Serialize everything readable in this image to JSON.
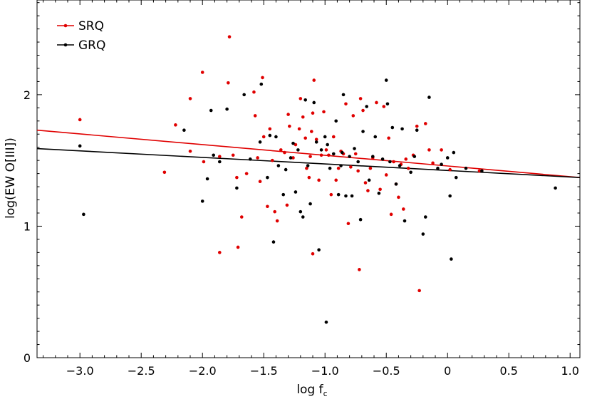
{
  "chart_data": {
    "type": "scatter",
    "title": "",
    "xlabel": "log f",
    "xlabel_sub": "c",
    "ylabel": "log(EW O[III])",
    "xlim": [
      -3.35,
      1.08
    ],
    "ylim": [
      0,
      2.72
    ],
    "x_ticks": [
      -3.0,
      -2.5,
      -2.0,
      -1.5,
      -1.0,
      -0.5,
      0,
      0.5,
      1.0
    ],
    "x_tick_labels": [
      "−3.0",
      "−2.5",
      "−2.0",
      "−1.5",
      "−1.0",
      "−0.5",
      "0",
      "0.5",
      "1.0"
    ],
    "y_ticks": [
      0,
      1,
      2
    ],
    "y_tick_labels": [
      "0",
      "1",
      "2"
    ],
    "grid": false,
    "legend_position": "top-left",
    "series": [
      {
        "name": "SRQ",
        "color": "#e00000",
        "points": [
          [
            -3.0,
            1.81
          ],
          [
            -2.31,
            1.41
          ],
          [
            -2.22,
            1.77
          ],
          [
            -2.1,
            1.97
          ],
          [
            -2.1,
            1.57
          ],
          [
            -2.0,
            2.17
          ],
          [
            -1.99,
            1.49
          ],
          [
            -1.86,
            1.53
          ],
          [
            -1.86,
            0.8
          ],
          [
            -1.79,
            2.09
          ],
          [
            -1.78,
            2.44
          ],
          [
            -1.75,
            1.54
          ],
          [
            -1.72,
            1.37
          ],
          [
            -1.71,
            0.84
          ],
          [
            -1.68,
            1.07
          ],
          [
            -1.64,
            1.4
          ],
          [
            -1.58,
            2.02
          ],
          [
            -1.57,
            1.84
          ],
          [
            -1.55,
            1.52
          ],
          [
            -1.53,
            1.34
          ],
          [
            -1.51,
            2.13
          ],
          [
            -1.5,
            1.68
          ],
          [
            -1.47,
            1.15
          ],
          [
            -1.45,
            1.74
          ],
          [
            -1.43,
            1.5
          ],
          [
            -1.41,
            1.11
          ],
          [
            -1.39,
            1.04
          ],
          [
            -1.36,
            1.58
          ],
          [
            -1.33,
            1.56
          ],
          [
            -1.31,
            1.16
          ],
          [
            -1.3,
            1.85
          ],
          [
            -1.29,
            1.76
          ],
          [
            -1.26,
            1.52
          ],
          [
            -1.24,
            1.62
          ],
          [
            -1.21,
            1.74
          ],
          [
            -1.2,
            1.97
          ],
          [
            -1.18,
            1.83
          ],
          [
            -1.16,
            1.67
          ],
          [
            -1.15,
            1.44
          ],
          [
            -1.13,
            1.37
          ],
          [
            -1.12,
            1.53
          ],
          [
            -1.11,
            1.72
          ],
          [
            -1.1,
            1.86
          ],
          [
            -1.1,
            0.79
          ],
          [
            -1.09,
            2.11
          ],
          [
            -1.07,
            1.66
          ],
          [
            -1.05,
            1.35
          ],
          [
            -1.03,
            1.54
          ],
          [
            -1.01,
            1.87
          ],
          [
            -0.99,
            1.58
          ],
          [
            -0.97,
            1.54
          ],
          [
            -0.95,
            1.24
          ],
          [
            -0.93,
            1.68
          ],
          [
            -0.91,
            1.35
          ],
          [
            -0.89,
            1.44
          ],
          [
            -0.87,
            1.57
          ],
          [
            -0.85,
            1.55
          ],
          [
            -0.83,
            1.93
          ],
          [
            -0.81,
            1.02
          ],
          [
            -0.79,
            1.45
          ],
          [
            -0.77,
            1.84
          ],
          [
            -0.75,
            1.55
          ],
          [
            -0.73,
            1.42
          ],
          [
            -0.72,
            0.67
          ],
          [
            -0.71,
            1.97
          ],
          [
            -0.69,
            1.88
          ],
          [
            -0.67,
            1.33
          ],
          [
            -0.65,
            1.27
          ],
          [
            -0.63,
            1.44
          ],
          [
            -0.61,
            1.52
          ],
          [
            -0.58,
            1.94
          ],
          [
            -0.55,
            1.28
          ],
          [
            -0.52,
            1.91
          ],
          [
            -0.5,
            1.39
          ],
          [
            -0.48,
            1.67
          ],
          [
            -0.46,
            1.09
          ],
          [
            -0.44,
            1.49
          ],
          [
            -0.42,
            1.32
          ],
          [
            -0.4,
            1.22
          ],
          [
            -0.38,
            1.47
          ],
          [
            -0.36,
            1.13
          ],
          [
            -0.34,
            1.51
          ],
          [
            -0.32,
            1.44
          ],
          [
            -0.28,
            1.54
          ],
          [
            -0.25,
            1.76
          ],
          [
            -0.23,
            0.51
          ],
          [
            -0.18,
            1.78
          ],
          [
            -0.15,
            1.58
          ],
          [
            -0.12,
            1.48
          ],
          [
            -0.05,
            1.58
          ],
          [
            0.02,
            1.43
          ],
          [
            0.26,
            1.42
          ]
        ],
        "fit": [
          [
            -3.35,
            1.73
          ],
          [
            1.08,
            1.37
          ]
        ]
      },
      {
        "name": "GRQ",
        "color": "#000000",
        "points": [
          [
            -3.0,
            1.61
          ],
          [
            -2.97,
            1.09
          ],
          [
            -2.15,
            1.73
          ],
          [
            -2.0,
            1.19
          ],
          [
            -1.96,
            1.36
          ],
          [
            -1.93,
            1.88
          ],
          [
            -1.91,
            1.54
          ],
          [
            -1.86,
            1.49
          ],
          [
            -1.8,
            1.89
          ],
          [
            -1.72,
            1.29
          ],
          [
            -1.66,
            2.0
          ],
          [
            -1.61,
            1.51
          ],
          [
            -1.53,
            1.64
          ],
          [
            -1.52,
            2.08
          ],
          [
            -1.47,
            1.37
          ],
          [
            -1.45,
            1.69
          ],
          [
            -1.42,
            0.88
          ],
          [
            -1.4,
            1.68
          ],
          [
            -1.38,
            1.46
          ],
          [
            -1.34,
            1.24
          ],
          [
            -1.32,
            1.43
          ],
          [
            -1.28,
            1.52
          ],
          [
            -1.26,
            1.63
          ],
          [
            -1.24,
            1.26
          ],
          [
            -1.22,
            1.58
          ],
          [
            -1.2,
            1.11
          ],
          [
            -1.18,
            1.07
          ],
          [
            -1.16,
            1.96
          ],
          [
            -1.14,
            1.46
          ],
          [
            -1.12,
            1.17
          ],
          [
            -1.09,
            1.94
          ],
          [
            -1.07,
            1.64
          ],
          [
            -1.05,
            0.82
          ],
          [
            -1.03,
            1.58
          ],
          [
            -1.0,
            1.68
          ],
          [
            -0.99,
            0.27
          ],
          [
            -0.98,
            1.62
          ],
          [
            -0.96,
            1.44
          ],
          [
            -0.93,
            1.55
          ],
          [
            -0.91,
            1.8
          ],
          [
            -0.89,
            1.24
          ],
          [
            -0.87,
            1.46
          ],
          [
            -0.86,
            1.56
          ],
          [
            -0.85,
            2.0
          ],
          [
            -0.83,
            1.23
          ],
          [
            -0.8,
            1.53
          ],
          [
            -0.78,
            1.23
          ],
          [
            -0.76,
            1.59
          ],
          [
            -0.73,
            1.49
          ],
          [
            -0.71,
            1.05
          ],
          [
            -0.69,
            1.72
          ],
          [
            -0.66,
            1.91
          ],
          [
            -0.64,
            1.35
          ],
          [
            -0.61,
            1.53
          ],
          [
            -0.59,
            1.68
          ],
          [
            -0.56,
            1.25
          ],
          [
            -0.53,
            1.51
          ],
          [
            -0.5,
            2.11
          ],
          [
            -0.49,
            1.93
          ],
          [
            -0.47,
            1.49
          ],
          [
            -0.45,
            1.75
          ],
          [
            -0.42,
            1.32
          ],
          [
            -0.39,
            1.46
          ],
          [
            -0.37,
            1.74
          ],
          [
            -0.35,
            1.04
          ],
          [
            -0.3,
            1.41
          ],
          [
            -0.27,
            1.53
          ],
          [
            -0.25,
            1.73
          ],
          [
            -0.2,
            0.94
          ],
          [
            -0.18,
            1.07
          ],
          [
            -0.15,
            1.98
          ],
          [
            -0.08,
            1.44
          ],
          [
            -0.05,
            1.47
          ],
          [
            0.0,
            1.52
          ],
          [
            0.02,
            1.23
          ],
          [
            0.03,
            0.75
          ],
          [
            0.05,
            1.56
          ],
          [
            0.07,
            1.37
          ],
          [
            0.15,
            1.44
          ],
          [
            0.28,
            1.42
          ],
          [
            0.88,
            1.29
          ]
        ],
        "fit": [
          [
            -3.35,
            1.59
          ],
          [
            1.08,
            1.37
          ]
        ]
      }
    ]
  }
}
